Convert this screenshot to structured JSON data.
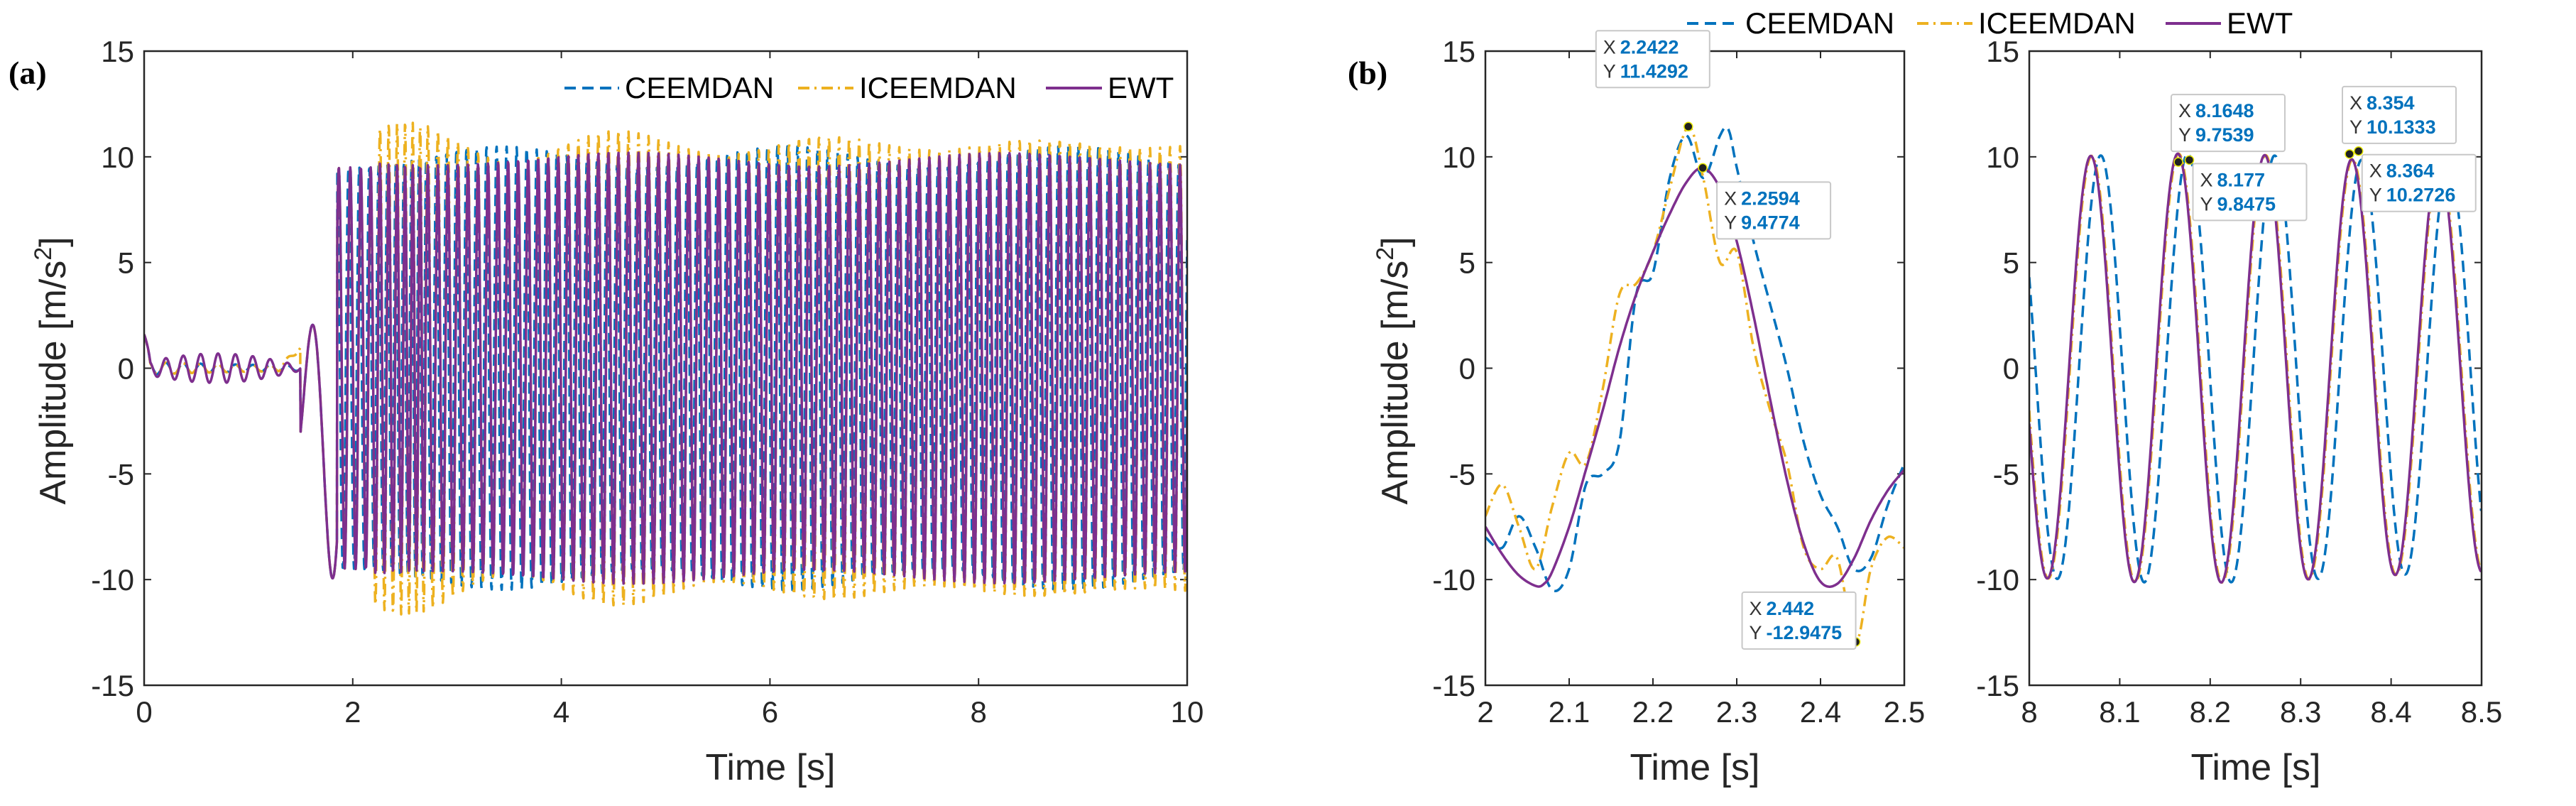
{
  "colors": {
    "CEEMDAN": "#0072BD",
    "ICEEMDAN": "#EDB120",
    "EWT": "#7E2F8E"
  },
  "legend": {
    "labels": [
      "CEEMDAN",
      "ICEEMDAN",
      "EWT"
    ]
  },
  "chart_data": [
    {
      "id": "a",
      "type": "line",
      "panel_label": "(a)",
      "title": "",
      "xlabel": "Time [s]",
      "ylabel": "Amplitude [m/s2]",
      "ylabel_main": "Amplitude [m/s",
      "ylabel_sup": "2",
      "ylabel_end": "]",
      "xlim": [
        0,
        10
      ],
      "ylim": [
        -15,
        15
      ],
      "xticks": [
        "0",
        "2",
        "4",
        "6",
        "8",
        "10"
      ],
      "yticks": [
        "-15",
        "-10",
        "-5",
        "0",
        "5",
        "10",
        "15"
      ],
      "legend_position": "top-right",
      "series": [
        {
          "name": "CEEMDAN",
          "style": "dashed",
          "description": "oscillation, onset at ~1.7 s, then amplitude ~9.5 to 10.5 with frequency ~10 Hz up to 10 s"
        },
        {
          "name": "ICEEMDAN",
          "style": "dash-dot",
          "description": "same oscillation, peaks up to ~12 and troughs down to ~-13 near 2.4 s"
        },
        {
          "name": "EWT",
          "style": "solid",
          "description": "same oscillation, amplitude ~9.5 to 10.3"
        }
      ]
    },
    {
      "id": "b1",
      "type": "line",
      "panel_label": "(b)",
      "xlabel": "Time [s]",
      "ylabel": "Amplitude [m/s2]",
      "ylabel_main": "Amplitude [m/s",
      "ylabel_sup": "2",
      "ylabel_end": "]",
      "xlim": [
        2,
        2.5
      ],
      "ylim": [
        -15,
        15
      ],
      "xticks": [
        "2",
        "2.1",
        "2.2",
        "2.3",
        "2.4",
        "2.5"
      ],
      "yticks": [
        "-15",
        "-10",
        "-5",
        "0",
        "5",
        "10",
        "15"
      ],
      "series": [
        {
          "name": "CEEMDAN",
          "x": [
            2.0,
            2.02,
            2.04,
            2.06,
            2.08,
            2.1,
            2.12,
            2.14,
            2.16,
            2.18,
            2.2,
            2.22,
            2.24,
            2.26,
            2.28,
            2.29,
            2.3,
            2.32,
            2.34,
            2.36,
            2.38,
            2.4,
            2.42,
            2.44,
            2.46,
            2.48,
            2.5
          ],
          "y": [
            -8,
            -8.5,
            -7,
            -8.5,
            -10.5,
            -9.5,
            -5.5,
            -5,
            -3.5,
            3.5,
            4.5,
            9,
            11,
            9,
            11,
            11.3,
            9.5,
            6,
            3,
            0,
            -3.5,
            -6,
            -7.5,
            -9.5,
            -9,
            -6.5,
            -4.5
          ]
        },
        {
          "name": "ICEEMDAN",
          "x": [
            2.0,
            2.02,
            2.04,
            2.06,
            2.08,
            2.1,
            2.12,
            2.14,
            2.16,
            2.18,
            2.2,
            2.22,
            2.2422,
            2.26,
            2.28,
            2.3,
            2.32,
            2.34,
            2.36,
            2.38,
            2.4,
            2.42,
            2.442,
            2.46,
            2.48,
            2.5
          ],
          "y": [
            -7,
            -5.5,
            -7.5,
            -9.5,
            -6.5,
            -4,
            -4.5,
            -1,
            3.5,
            4,
            5.5,
            8.5,
            11.4292,
            9,
            5,
            5.5,
            1,
            -2,
            -4.5,
            -8.5,
            -9.5,
            -9,
            -12.9475,
            -9.5,
            -8,
            -8.5
          ]
        },
        {
          "name": "EWT",
          "x": [
            2.0,
            2.02,
            2.04,
            2.06,
            2.07,
            2.08,
            2.1,
            2.12,
            2.14,
            2.16,
            2.18,
            2.2,
            2.22,
            2.24,
            2.2594,
            2.28,
            2.3,
            2.32,
            2.34,
            2.36,
            2.38,
            2.4,
            2.42,
            2.44,
            2.46,
            2.48,
            2.5
          ],
          "y": [
            -7.5,
            -8.8,
            -9.8,
            -10.3,
            -10.2,
            -9.6,
            -7.5,
            -4.8,
            -2,
            1,
            3.5,
            5.5,
            7.3,
            8.8,
            9.4774,
            8.5,
            6,
            2.5,
            -1.5,
            -5.3,
            -8.3,
            -10.1,
            -10.2,
            -9,
            -7.2,
            -5.8,
            -4.8
          ]
        }
      ],
      "datatips": [
        {
          "x_label": "X",
          "x_value": "2.2422",
          "y_label": "Y",
          "y_value": "11.4292",
          "x": 2.2422,
          "y": 11.4292
        },
        {
          "x_label": "X",
          "x_value": "2.2594",
          "y_label": "Y",
          "y_value": "9.4774",
          "x": 2.2594,
          "y": 9.4774
        },
        {
          "x_label": "X",
          "x_value": "2.442",
          "y_label": "Y",
          "y_value": "-12.9475",
          "x": 2.442,
          "y": -12.9475
        }
      ]
    },
    {
      "id": "b2",
      "type": "line",
      "xlabel": "Time [s]",
      "ylabel": "",
      "xlim": [
        8,
        8.5
      ],
      "ylim": [
        -15,
        15
      ],
      "xticks": [
        "8",
        "8.1",
        "8.2",
        "8.3",
        "8.4",
        "8.5"
      ],
      "yticks": [
        "-15",
        "-10",
        "-5",
        "0",
        "5",
        "10",
        "15"
      ],
      "series": [
        {
          "name": "CEEMDAN",
          "description": "sinusoid period ~0.096 s, amplitude ~10, shifted ~0.01 s later than EWT",
          "freq_hz": 10.4,
          "amplitude": 9.9,
          "peaks_x": [
            8.078,
            8.177,
            8.364,
            8.455
          ]
        },
        {
          "name": "ICEEMDAN",
          "description": "nearly identical to EWT in this window",
          "freq_hz": 10.4,
          "amplitude": 9.9
        },
        {
          "name": "EWT",
          "description": "sinusoid period ~0.096 s, amplitude ~10",
          "freq_hz": 10.4,
          "amplitude": 9.9,
          "peaks_x": [
            8.065,
            8.165,
            8.354,
            8.445
          ]
        }
      ],
      "datatips": [
        {
          "x_label": "X",
          "x_value": "8.1648",
          "y_label": "Y",
          "y_value": "9.7539",
          "x": 8.1648,
          "y": 9.7539
        },
        {
          "x_label": "X",
          "x_value": "8.177",
          "y_label": "Y",
          "y_value": "9.8475",
          "x": 8.177,
          "y": 9.8475
        },
        {
          "x_label": "X",
          "x_value": "8.354",
          "y_label": "Y",
          "y_value": "10.1333",
          "x": 8.354,
          "y": 10.1333
        },
        {
          "x_label": "X",
          "x_value": "8.364",
          "y_label": "Y",
          "y_value": "10.2726",
          "x": 8.364,
          "y": 10.2726
        }
      ]
    }
  ]
}
